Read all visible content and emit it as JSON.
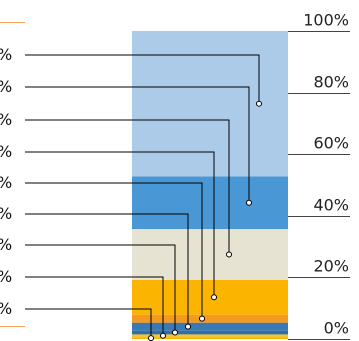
{
  "chart_data": {
    "type": "bar",
    "stacked": true,
    "orientation": "vertical",
    "categories": [
      ""
    ],
    "series": [
      {
        "values": [
          0.6
        ],
        "color": "#F5B800"
      },
      {
        "values": [
          0.9
        ],
        "color": "#F7C233"
      },
      {
        "values": [
          1.2
        ],
        "color": "#2F6FA8"
      },
      {
        "values": [
          2.6
        ],
        "color": "#3A79B4"
      },
      {
        "values": [
          2.6
        ],
        "color": "#F59A1E"
      },
      {
        "values": [
          11.3
        ],
        "color": "#FBB500"
      },
      {
        "values": [
          16.5
        ],
        "color": "#E6E3D2"
      },
      {
        "values": [
          17.1
        ],
        "color": "#4A97D5"
      },
      {
        "values": [
          47.2
        ],
        "color": "#ACCBE8"
      }
    ],
    "ylim": [
      0,
      100
    ],
    "y_ticks": [
      "0%",
      "20%",
      "40%",
      "60%",
      "80%",
      "100%"
    ],
    "grid": false,
    "left_labels": [
      "%",
      "%",
      "%",
      "%",
      "%",
      "%",
      "%",
      "%",
      "%"
    ],
    "label_leader_color": "#000000",
    "left_guide_color": "#F2A55A"
  }
}
